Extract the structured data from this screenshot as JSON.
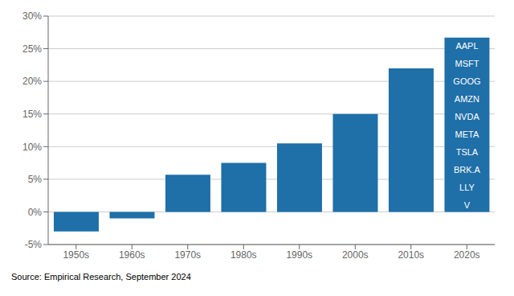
{
  "chart_data": {
    "type": "bar",
    "categories": [
      "1950s",
      "1960s",
      "1970s",
      "1980s",
      "1990s",
      "2000s",
      "2010s",
      "2020s"
    ],
    "values": [
      -3.0,
      -1.0,
      5.7,
      7.5,
      10.5,
      15.0,
      22.0,
      26.7
    ],
    "color": "#1f6fa8",
    "ylim": [
      -5,
      30
    ],
    "yticks": [
      {
        "value": -5,
        "label": "-5%"
      },
      {
        "value": 0,
        "label": "0%"
      },
      {
        "value": 5,
        "label": "5%"
      },
      {
        "value": 10,
        "label": "10%"
      },
      {
        "value": 15,
        "label": "15%"
      },
      {
        "value": 20,
        "label": "20%"
      },
      {
        "value": 25,
        "label": "25%"
      },
      {
        "value": 30,
        "label": "30%"
      }
    ],
    "grid": true,
    "annotations": [
      "AAPL",
      "MSFT",
      "GOOG",
      "AMZN",
      "NVDA",
      "META",
      "TSLA",
      "BRK.A",
      "LLY",
      "V"
    ],
    "source": "Source: Empirical Research, September 2024"
  }
}
